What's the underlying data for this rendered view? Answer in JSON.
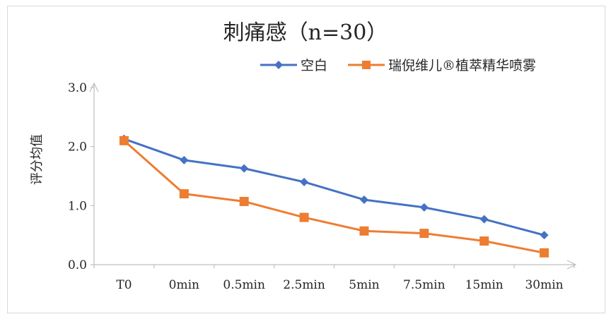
{
  "chart_data": {
    "type": "line",
    "title": "刺痛感（n=30）",
    "xlabel": "",
    "ylabel": "评分均值",
    "categories": [
      "T0",
      "0min",
      "0.5min",
      "2.5min",
      "5min",
      "7.5min",
      "15min",
      "30min"
    ],
    "ylim": [
      0,
      3
    ],
    "yticks": [
      "0.0",
      "1.0",
      "2.0",
      "3.0"
    ],
    "grid": false,
    "legend_position": "top-right",
    "series": [
      {
        "name": "空白",
        "marker": "diamond",
        "color": "#4472C4",
        "values": [
          2.13,
          1.77,
          1.63,
          1.4,
          1.1,
          0.97,
          0.77,
          0.5
        ]
      },
      {
        "name": "瑞倪维儿®植萃精华喷雾",
        "marker": "square",
        "color": "#ED7D31",
        "values": [
          2.1,
          1.2,
          1.07,
          0.8,
          0.57,
          0.53,
          0.4,
          0.2
        ]
      }
    ]
  }
}
